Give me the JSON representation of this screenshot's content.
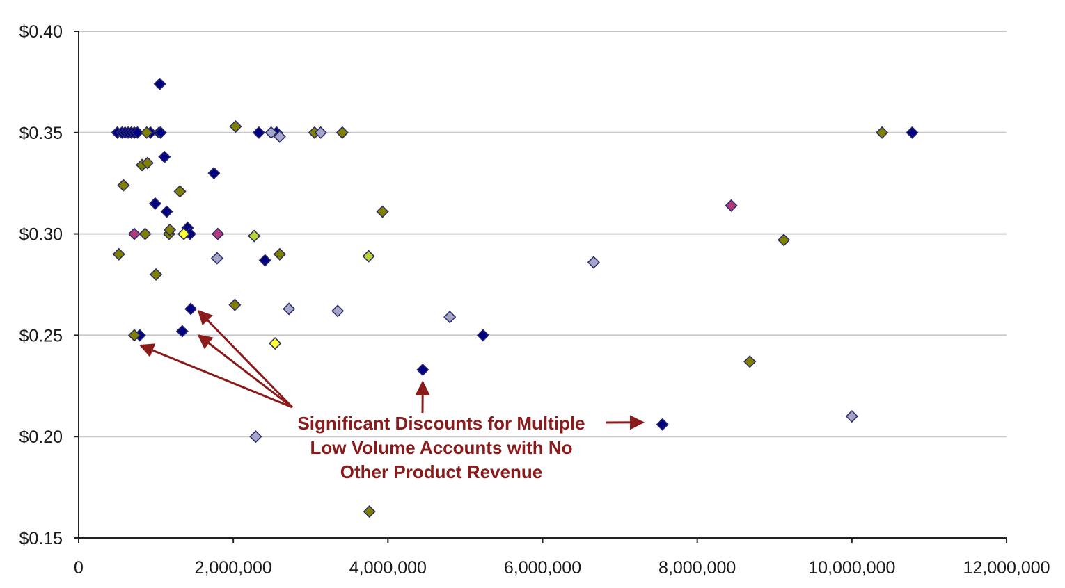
{
  "chart_data": {
    "type": "scatter",
    "title": "",
    "xlabel": "",
    "ylabel": "",
    "xlim": [
      0,
      12000000
    ],
    "ylim": [
      0.15,
      0.4
    ],
    "x_ticks": [
      0,
      2000000,
      4000000,
      6000000,
      8000000,
      10000000,
      12000000
    ],
    "x_tick_labels": [
      "0",
      "2,000,000",
      "4,000,000",
      "6,000,000",
      "8,000,000",
      "10,000,000",
      "12,000,000"
    ],
    "y_ticks": [
      0.15,
      0.2,
      0.25,
      0.3,
      0.35,
      0.4
    ],
    "y_tick_labels": [
      "$0.15",
      "$0.20",
      "$0.25",
      "$0.30",
      "$0.35",
      "$0.40"
    ],
    "grid": "horizontal",
    "legend": "none",
    "marker": "diamond",
    "colors": {
      "navy": "#000080",
      "olive": "#808000",
      "lavender": "#a6a6c8",
      "magenta": "#b03a7a",
      "lime": "#b6d433",
      "yellow": "#ffff33",
      "annotation": "#8b1a1a"
    },
    "series": [
      {
        "color": "navy",
        "points": [
          [
            500000,
            0.35
          ],
          [
            560000,
            0.35
          ],
          [
            600000,
            0.35
          ],
          [
            640000,
            0.35
          ],
          [
            680000,
            0.35
          ],
          [
            720000,
            0.35
          ],
          [
            760000,
            0.35
          ],
          [
            930000,
            0.35
          ],
          [
            1040000,
            0.35
          ],
          [
            1060000,
            0.35
          ],
          [
            1050000,
            0.374
          ],
          [
            1110000,
            0.338
          ],
          [
            990000,
            0.315
          ],
          [
            1140000,
            0.311
          ],
          [
            1410000,
            0.303
          ],
          [
            1440000,
            0.3
          ],
          [
            1750000,
            0.33
          ],
          [
            2330000,
            0.35
          ],
          [
            2560000,
            0.35
          ],
          [
            2410000,
            0.287
          ],
          [
            1450000,
            0.263
          ],
          [
            1340000,
            0.252
          ],
          [
            790000,
            0.25
          ],
          [
            4450000,
            0.233
          ],
          [
            5230000,
            0.25
          ],
          [
            7550000,
            0.206
          ],
          [
            10780000,
            0.35
          ]
        ]
      },
      {
        "color": "olive",
        "points": [
          [
            880000,
            0.35
          ],
          [
            2030000,
            0.353
          ],
          [
            3050000,
            0.35
          ],
          [
            3410000,
            0.35
          ],
          [
            820000,
            0.334
          ],
          [
            890000,
            0.335
          ],
          [
            580000,
            0.324
          ],
          [
            1310000,
            0.321
          ],
          [
            860000,
            0.3
          ],
          [
            1170000,
            0.3
          ],
          [
            1180000,
            0.302
          ],
          [
            520000,
            0.29
          ],
          [
            2600000,
            0.29
          ],
          [
            1000000,
            0.28
          ],
          [
            2020000,
            0.265
          ],
          [
            720000,
            0.25
          ],
          [
            3930000,
            0.311
          ],
          [
            3760000,
            0.163
          ],
          [
            8680000,
            0.237
          ],
          [
            9120000,
            0.297
          ],
          [
            10390000,
            0.35
          ]
        ]
      },
      {
        "color": "lavender",
        "points": [
          [
            2490000,
            0.35
          ],
          [
            2600000,
            0.348
          ],
          [
            3130000,
            0.35
          ],
          [
            1790000,
            0.288
          ],
          [
            2720000,
            0.263
          ],
          [
            3350000,
            0.262
          ],
          [
            4800000,
            0.259
          ],
          [
            6660000,
            0.286
          ],
          [
            2290000,
            0.2
          ],
          [
            10000000,
            0.21
          ]
        ]
      },
      {
        "color": "magenta",
        "points": [
          [
            720000,
            0.3
          ],
          [
            1800000,
            0.3
          ],
          [
            8440000,
            0.314
          ]
        ]
      },
      {
        "color": "lime",
        "points": [
          [
            2270000,
            0.299
          ],
          [
            3750000,
            0.289
          ]
        ]
      },
      {
        "color": "yellow",
        "points": [
          [
            1360000,
            0.3
          ],
          [
            2540000,
            0.246
          ]
        ]
      }
    ],
    "annotations": [
      {
        "lines": [
          "Significant Discounts for Multiple",
          "Low Volume Accounts with No",
          "Other Product Revenue"
        ],
        "color": "annotation",
        "arrow_targets": [
          [
            800000,
            0.245
          ],
          [
            1550000,
            0.25
          ],
          [
            1550000,
            0.262
          ],
          [
            4450000,
            0.227
          ],
          [
            7300000,
            0.207
          ]
        ]
      }
    ]
  }
}
